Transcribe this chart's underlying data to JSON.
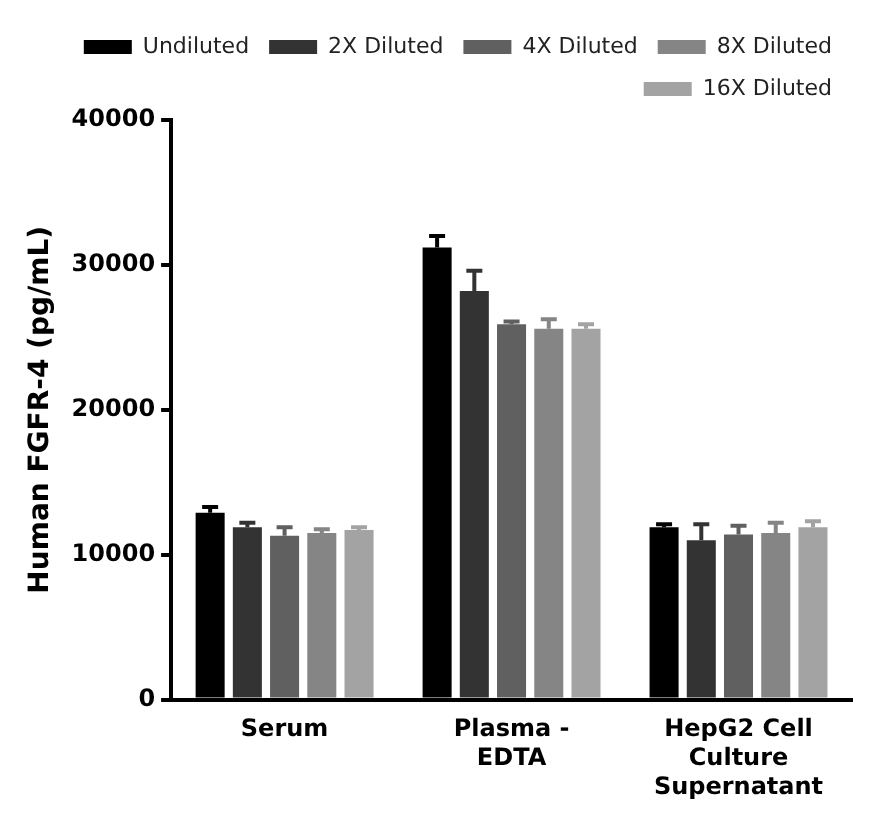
{
  "chart_data": {
    "type": "bar",
    "ylabel": "Human FGFR-4 (pg/mL)",
    "categories": [
      "Serum",
      "Plasma - EDTA",
      "HepG2 Cell Culture Supernatant"
    ],
    "series": [
      {
        "name": "Undiluted",
        "color": "#000000",
        "values": [
          12900,
          31200,
          11900
        ],
        "errors": [
          400,
          800,
          200
        ]
      },
      {
        "name": "2X Diluted",
        "color": "#333333",
        "values": [
          11900,
          28200,
          11000
        ],
        "errors": [
          300,
          1400,
          1100
        ]
      },
      {
        "name": "4X Diluted",
        "color": "#606060",
        "values": [
          11300,
          25900,
          11400
        ],
        "errors": [
          600,
          200,
          600
        ]
      },
      {
        "name": "8X Diluted",
        "color": "#858585",
        "values": [
          11500,
          25600,
          11500
        ],
        "errors": [
          250,
          650,
          700
        ]
      },
      {
        "name": "16X Diluted",
        "color": "#a3a3a3",
        "values": [
          11700,
          25600,
          11900
        ],
        "errors": [
          200,
          300,
          400
        ]
      }
    ],
    "ylim": [
      0,
      40000
    ],
    "yticks": [
      0,
      10000,
      20000,
      30000,
      40000
    ],
    "grid": false,
    "legend": "top"
  }
}
